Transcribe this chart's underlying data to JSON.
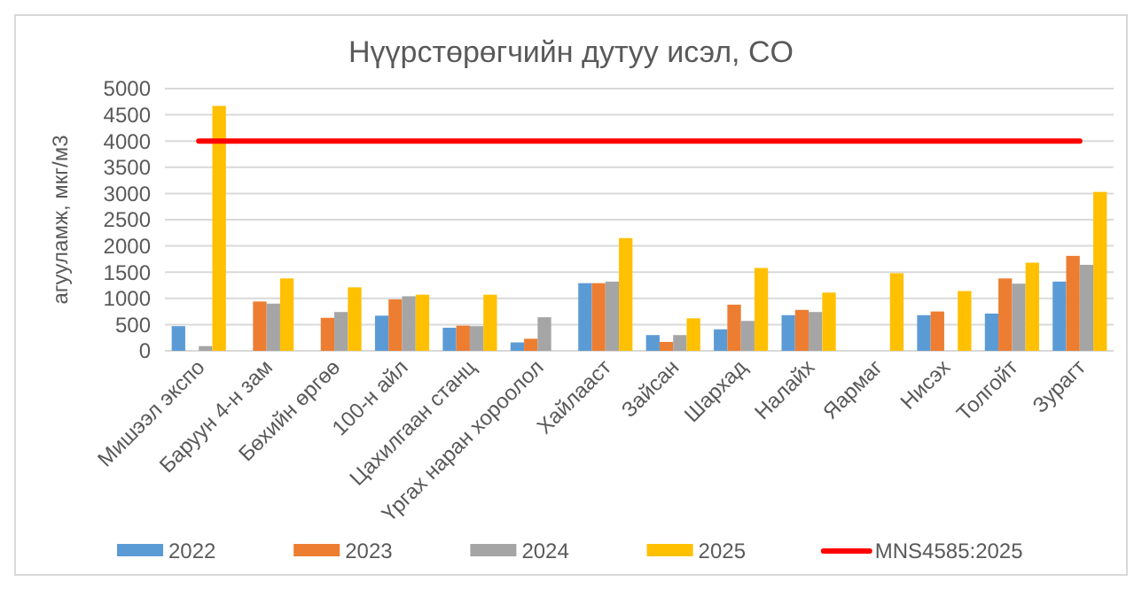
{
  "chart_data": {
    "type": "bar",
    "title": "Нүүрстөрөгчийн дутуу исэл, CO",
    "ylabel": "агууламж, мкг/м3",
    "categories": [
      "Мишээл экспо",
      "Баруун 4-н зам",
      "Бөхийн өргөө",
      "100-н айл",
      "Цахилгаан станц",
      "Үргах наран хороолол",
      "Хайлааст",
      "Зайсан",
      "Шархад",
      "Налайх",
      "Яармаг",
      "Нисэх",
      "Толгойт",
      "Зурагт"
    ],
    "series": [
      {
        "name": "2022",
        "color": "#5b9bd5",
        "values": [
          470,
          null,
          null,
          670,
          440,
          160,
          1290,
          300,
          410,
          680,
          null,
          680,
          710,
          1320
        ]
      },
      {
        "name": "2023",
        "color": "#ed7d31",
        "values": [
          null,
          940,
          630,
          980,
          480,
          230,
          1290,
          170,
          880,
          780,
          null,
          750,
          1380,
          1810
        ]
      },
      {
        "name": "2024",
        "color": "#a5a5a5",
        "values": [
          90,
          900,
          740,
          1040,
          470,
          640,
          1320,
          300,
          570,
          740,
          null,
          null,
          1280,
          1640
        ]
      },
      {
        "name": "2025",
        "color": "#ffc000",
        "values": [
          4670,
          1380,
          1210,
          1070,
          1070,
          null,
          2150,
          620,
          1580,
          1110,
          1480,
          1140,
          1680,
          3030
        ]
      },
      {
        "name": "MNS4585:2025",
        "type": "line",
        "color": "#ff0000",
        "values": [
          4000,
          4000,
          4000,
          4000,
          4000,
          4000,
          4000,
          4000,
          4000,
          4000,
          4000,
          4000,
          4000,
          4000
        ]
      }
    ],
    "ylim": [
      0,
      5000
    ],
    "yticks": [
      0,
      500,
      1000,
      1500,
      2000,
      2500,
      3000,
      3500,
      4000,
      4500,
      5000
    ],
    "grid": "y",
    "legend": "bottom"
  }
}
